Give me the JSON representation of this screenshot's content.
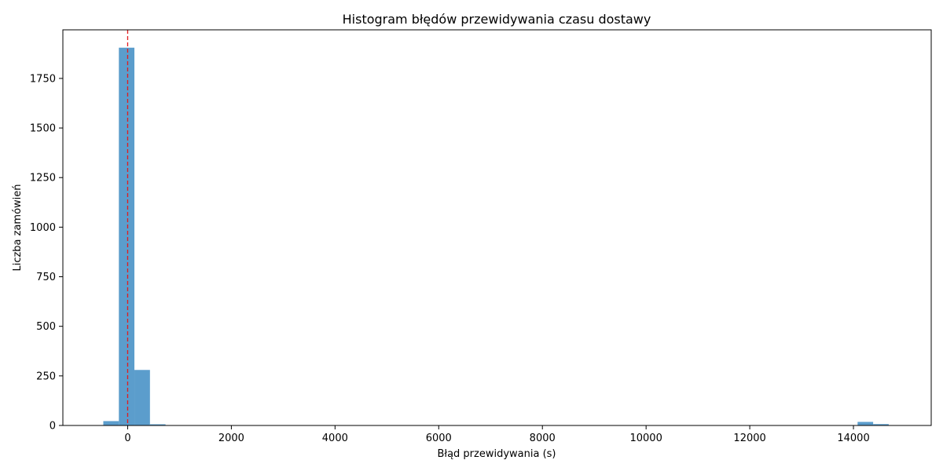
{
  "chart_data": {
    "type": "bar",
    "title": "Histogram błędów przewidywania czasu dostawy",
    "xlabel": "Błąd przewidywania (s)",
    "ylabel": "Liczba zamówień",
    "xlim": [
      -1250,
      15500
    ],
    "ylim": [
      0,
      1995
    ],
    "x_ticks": [
      0,
      2000,
      4000,
      6000,
      8000,
      10000,
      12000,
      14000
    ],
    "x_tick_labels": [
      "0",
      "2000",
      "4000",
      "6000",
      "8000",
      "10000",
      "12000",
      "14000"
    ],
    "y_ticks": [
      0,
      250,
      500,
      750,
      1000,
      1250,
      1500,
      1750
    ],
    "y_tick_labels": [
      "0",
      "250",
      "500",
      "750",
      "1000",
      "1250",
      "1500",
      "1750"
    ],
    "bins": [
      {
        "x0": -470,
        "x1": -170,
        "count": 22
      },
      {
        "x0": -170,
        "x1": 130,
        "count": 1905
      },
      {
        "x0": 130,
        "x1": 430,
        "count": 280
      },
      {
        "x0": 430,
        "x1": 730,
        "count": 6
      },
      {
        "x0": 14080,
        "x1": 14380,
        "count": 18
      },
      {
        "x0": 14380,
        "x1": 14680,
        "count": 7
      }
    ],
    "reference_line": {
      "x": 0,
      "style": "dashed",
      "color": "#e41a1c"
    },
    "bar_color": "#5b9dcc",
    "grid": false,
    "legend": "none"
  }
}
